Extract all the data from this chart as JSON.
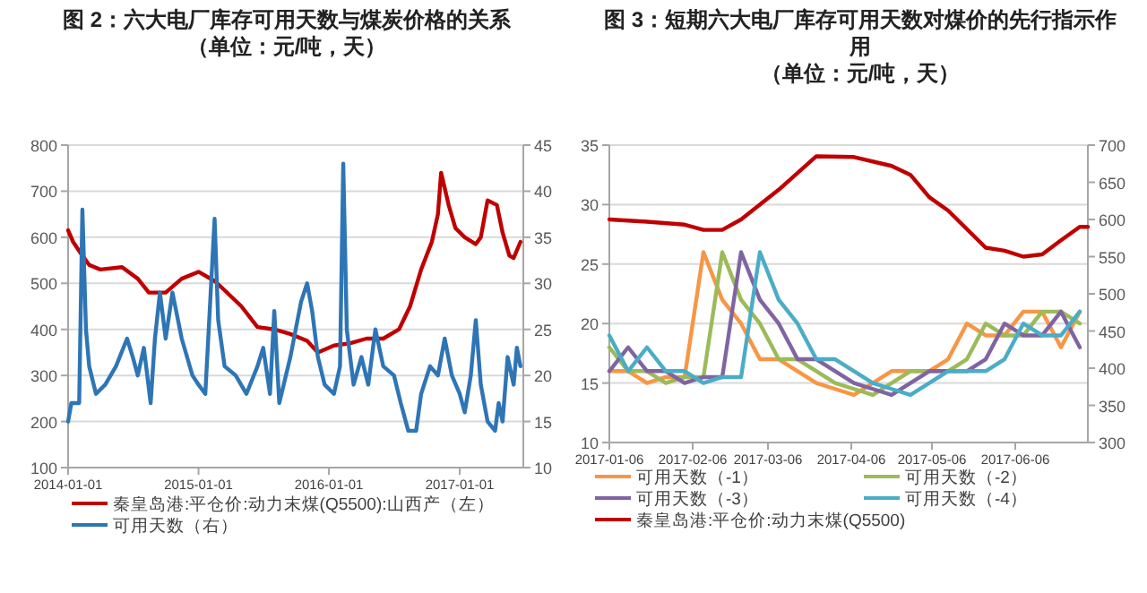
{
  "chart_data": [
    {
      "type": "line",
      "title": "图 2：六大电厂库存可用天数与煤炭价格的关系",
      "subtitle": "（单位：元/吨，天）",
      "xlim": [
        "2014-01-01",
        "2017-06-28"
      ],
      "xticks": [
        "2014-01-01",
        "2015-01-01",
        "2016-01-01",
        "2017-01-01"
      ],
      "ylim": [
        100,
        800
      ],
      "yticks": [
        100,
        200,
        300,
        400,
        500,
        600,
        700,
        800
      ],
      "y2lim": [
        10,
        45
      ],
      "y2ticks": [
        10,
        15,
        20,
        25,
        30,
        35,
        40,
        45
      ],
      "grid": "y",
      "legend": "bottom",
      "series": [
        {
          "name": "秦皇岛港:平仓价:动力末煤(Q5500):山西产（左）",
          "color": "#c00000",
          "axis": "y",
          "x": [
            "2014-01-01",
            "2014-01-15",
            "2014-02-10",
            "2014-03-01",
            "2014-04-01",
            "2014-06-01",
            "2014-07-15",
            "2014-08-15",
            "2014-10-01",
            "2014-11-15",
            "2015-01-01",
            "2015-02-15",
            "2015-03-15",
            "2015-05-01",
            "2015-06-15",
            "2015-08-01",
            "2015-09-15",
            "2015-11-01",
            "2015-12-01",
            "2016-01-15",
            "2016-03-01",
            "2016-04-15",
            "2016-06-01",
            "2016-07-15",
            "2016-08-15",
            "2016-09-15",
            "2016-10-15",
            "2016-11-01",
            "2016-11-10",
            "2016-12-01",
            "2016-12-20",
            "2017-01-15",
            "2017-02-15",
            "2017-03-01",
            "2017-03-20",
            "2017-04-15",
            "2017-05-01",
            "2017-05-20",
            "2017-06-01",
            "2017-06-20"
          ],
          "values": [
            615,
            590,
            560,
            540,
            530,
            535,
            510,
            480,
            480,
            510,
            525,
            505,
            485,
            450,
            405,
            400,
            390,
            375,
            350,
            365,
            370,
            380,
            380,
            400,
            450,
            530,
            590,
            650,
            740,
            670,
            620,
            600,
            585,
            600,
            680,
            670,
            610,
            560,
            555,
            590
          ]
        },
        {
          "name": "可用天数（右）",
          "color": "#2e75b6",
          "axis": "y2",
          "x": [
            "2014-01-01",
            "2014-01-10",
            "2014-02-01",
            "2014-02-10",
            "2014-02-20",
            "2014-03-01",
            "2014-03-20",
            "2014-04-15",
            "2014-05-15",
            "2014-06-15",
            "2014-07-01",
            "2014-07-15",
            "2014-08-01",
            "2014-08-20",
            "2014-09-01",
            "2014-09-15",
            "2014-10-01",
            "2014-10-20",
            "2014-11-15",
            "2014-12-15",
            "2015-01-01",
            "2015-01-20",
            "2015-02-15",
            "2015-02-25",
            "2015-03-15",
            "2015-04-15",
            "2015-05-15",
            "2015-06-15",
            "2015-07-01",
            "2015-07-20",
            "2015-08-01",
            "2015-08-15",
            "2015-09-15",
            "2015-10-15",
            "2015-11-01",
            "2015-11-15",
            "2015-12-01",
            "2015-12-20",
            "2016-01-15",
            "2016-02-01",
            "2016-02-10",
            "2016-02-20",
            "2016-03-10",
            "2016-04-01",
            "2016-04-20",
            "2016-05-10",
            "2016-06-01",
            "2016-07-01",
            "2016-07-20",
            "2016-08-10",
            "2016-09-01",
            "2016-09-15",
            "2016-10-10",
            "2016-11-01",
            "2016-11-20",
            "2016-12-10",
            "2017-01-01",
            "2017-01-15",
            "2017-02-01",
            "2017-02-15",
            "2017-03-01",
            "2017-03-20",
            "2017-04-10",
            "2017-04-20",
            "2017-05-01",
            "2017-05-15",
            "2017-06-01",
            "2017-06-10",
            "2017-06-20"
          ],
          "values": [
            15,
            17,
            17,
            38,
            25,
            21,
            18,
            19,
            21,
            24,
            22,
            20,
            23,
            17,
            24,
            29,
            24,
            29,
            24,
            20,
            19,
            18,
            37,
            26,
            21,
            20,
            18,
            21,
            23,
            18,
            27,
            17,
            22,
            28,
            30,
            27,
            22,
            19,
            18,
            21,
            43,
            25,
            19,
            22,
            19,
            25,
            21,
            20,
            17,
            14,
            14,
            18,
            21,
            20,
            24,
            20,
            18,
            16,
            20,
            26,
            19,
            15,
            14,
            17,
            15,
            22,
            19,
            23,
            21
          ]
        }
      ]
    },
    {
      "type": "line",
      "title": "图 3：短期六大电厂库存可用天数对煤价的先行指示作用",
      "subtitle": "（单位：元/吨，天）",
      "xlim": [
        "2017-01-06",
        "2017-07-03"
      ],
      "xticks": [
        "2017-01-06",
        "2017-02-06",
        "2017-03-06",
        "2017-04-06",
        "2017-05-06",
        "2017-06-06"
      ],
      "ylim": [
        10,
        35
      ],
      "yticks": [
        10,
        15,
        20,
        25,
        30,
        35
      ],
      "y2lim": [
        300,
        700
      ],
      "y2ticks": [
        300,
        350,
        400,
        450,
        500,
        550,
        600,
        650,
        700
      ],
      "grid": "y",
      "legend": "bottom",
      "x": [
        "2017-01-06",
        "2017-01-13",
        "2017-01-20",
        "2017-01-27",
        "2017-02-03",
        "2017-02-10",
        "2017-02-17",
        "2017-02-24",
        "2017-03-03",
        "2017-03-10",
        "2017-03-17",
        "2017-03-24",
        "2017-03-31",
        "2017-04-07",
        "2017-04-14",
        "2017-04-21",
        "2017-04-28",
        "2017-05-05",
        "2017-05-12",
        "2017-05-19",
        "2017-05-26",
        "2017-06-02",
        "2017-06-09",
        "2017-06-16",
        "2017-06-23",
        "2017-06-30"
      ],
      "series": [
        {
          "name": "可用天数（-1）",
          "color": "#f79646",
          "axis": "y",
          "values": [
            16,
            16,
            15,
            15.5,
            15.5,
            26,
            22,
            20,
            17,
            17,
            16,
            15,
            14.5,
            14,
            15,
            16,
            16,
            16,
            17,
            20,
            19,
            19,
            21,
            21,
            18,
            21
          ]
        },
        {
          "name": "可用天数（-2）",
          "color": "#9bbb59",
          "axis": "y",
          "values": [
            18,
            16,
            16,
            15,
            15.5,
            15.5,
            26,
            22,
            20,
            17,
            17,
            16,
            15,
            14.5,
            14,
            15,
            16,
            16,
            16,
            17,
            20,
            19,
            19,
            21,
            21,
            20
          ]
        },
        {
          "name": "可用天数（-3）",
          "color": "#8064a2",
          "axis": "y",
          "values": [
            16,
            18,
            16,
            16,
            15,
            15.5,
            15.5,
            26,
            22,
            20,
            17,
            17,
            16,
            15,
            14.5,
            14,
            15,
            16,
            16,
            16,
            17,
            20,
            19,
            19,
            21,
            18
          ]
        },
        {
          "name": "可用天数（-4）",
          "color": "#4bacc6",
          "axis": "y",
          "values": [
            19,
            16,
            18,
            16,
            16,
            15,
            15.5,
            15.5,
            26,
            22,
            20,
            17,
            17,
            16,
            15,
            14.5,
            14,
            15,
            16,
            16,
            16,
            17,
            20,
            19,
            19,
            21
          ]
        },
        {
          "name": "秦皇岛港:平仓价:动力末煤(Q5500)",
          "color": "#c00000",
          "axis": "y2",
          "x": [
            "2017-01-06",
            "2017-01-20",
            "2017-02-03",
            "2017-02-10",
            "2017-02-17",
            "2017-02-24",
            "2017-03-10",
            "2017-03-24",
            "2017-04-07",
            "2017-04-21",
            "2017-04-28",
            "2017-05-05",
            "2017-05-12",
            "2017-05-26",
            "2017-06-02",
            "2017-06-09",
            "2017-06-16",
            "2017-06-23",
            "2017-06-30",
            "2017-07-03"
          ],
          "values": [
            600,
            597,
            593,
            586,
            586,
            600,
            640,
            685,
            684,
            672,
            660,
            630,
            612,
            562,
            558,
            550,
            553,
            572,
            590,
            590
          ]
        }
      ]
    }
  ]
}
